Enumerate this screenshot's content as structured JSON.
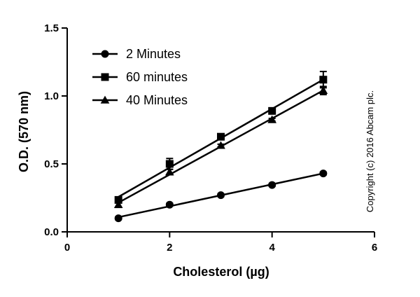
{
  "chart_data": {
    "type": "line",
    "xlabel": "Cholesterol (µg)",
    "ylabel": "O.D. (570 nm)",
    "xlim": [
      0,
      6
    ],
    "ylim": [
      0,
      1.5
    ],
    "x_ticks": [
      0,
      2,
      4,
      6
    ],
    "y_ticks": [
      0.0,
      0.5,
      1.0,
      1.5
    ],
    "x_tick_labels": [
      "0",
      "2",
      "4",
      "6"
    ],
    "y_tick_labels": [
      "0.0",
      "0.5",
      "1.0",
      "1.5"
    ],
    "grid": false,
    "legend_position": "top-left",
    "series": [
      {
        "name": "2 Minutes",
        "marker": "circle",
        "x": [
          1,
          2,
          3,
          4,
          5
        ],
        "y": [
          0.1,
          0.2,
          0.27,
          0.345,
          0.43
        ],
        "error": [
          0.01,
          0.01,
          0.01,
          0.01,
          0.01
        ]
      },
      {
        "name": "60 minutes",
        "marker": "square",
        "x": [
          1,
          2,
          3,
          4,
          5
        ],
        "y": [
          0.235,
          0.5,
          0.7,
          0.89,
          1.12
        ],
        "error": [
          0.02,
          0.04,
          0.02,
          0.02,
          0.06
        ]
      },
      {
        "name": "40 Minutes",
        "marker": "triangle",
        "x": [
          1,
          2,
          3,
          4,
          5
        ],
        "y": [
          0.2,
          0.44,
          0.635,
          0.825,
          1.04
        ],
        "error": [
          0.02,
          0.02,
          0.01,
          0.01,
          0.03
        ]
      }
    ],
    "annotation": "Copyright (c) 2016 Abcam plc.",
    "color": "#000000"
  }
}
